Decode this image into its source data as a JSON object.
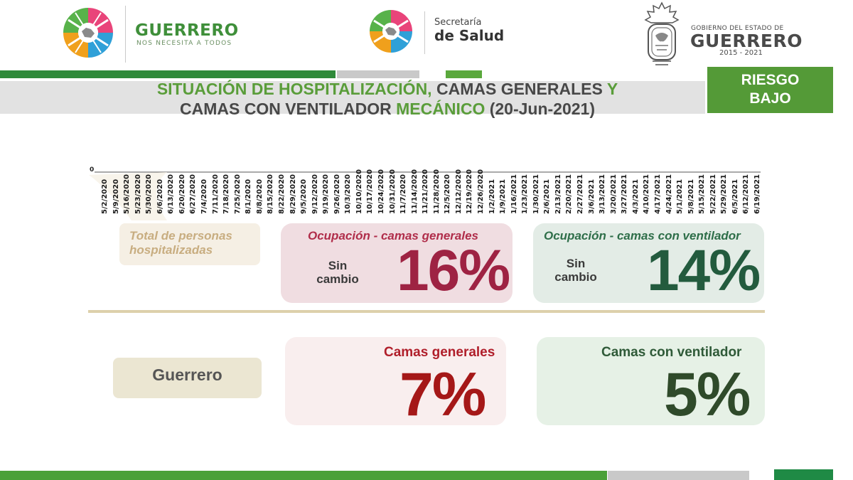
{
  "header": {
    "guerrero_logo": {
      "name": "GUERRERO",
      "tagline": "NOS NECESITA A TODOS"
    },
    "salud_logo": {
      "line1": "Secretaría",
      "line2": "de Salud"
    },
    "government_logo": {
      "line1": "GOBIERNO DEL ESTADO DE",
      "line2": "GUERRERO",
      "years": "2015 - 2021"
    }
  },
  "title": {
    "part1": "SITUACIÓN DE HOSPITALIZACIÓN,",
    "part2": "CAMAS GENERALES",
    "part3": "Y",
    "part4": "CAMAS CON VENTILADOR",
    "part5": "MECÁNICO",
    "part6": "(20-Jun-2021)"
  },
  "risk": {
    "line1": "RIESGO",
    "line2": "BAJO"
  },
  "axis": {
    "zero_label": "0",
    "dates": [
      "5/2/2020",
      "5/9/2020",
      "5/16/2020",
      "5/23/2020",
      "5/30/2020",
      "6/6/2020",
      "6/13/2020",
      "6/20/2020",
      "6/27/2020",
      "7/4/2020",
      "7/11/2020",
      "7/18/2020",
      "7/25/2020",
      "8/1/2020",
      "8/8/2020",
      "8/15/2020",
      "8/22/2020",
      "8/29/2020",
      "9/5/2020",
      "9/12/2020",
      "9/19/2020",
      "9/26/2020",
      "10/3/2020",
      "10/10/2020",
      "10/17/2020",
      "10/24/2020",
      "10/31/2020",
      "11/7/2020",
      "11/14/2020",
      "11/21/2020",
      "11/28/2020",
      "12/5/2020",
      "12/12/2020",
      "12/19/2020",
      "12/26/2020",
      "1/2/2021",
      "1/9/2021",
      "1/16/2021",
      "1/23/2021",
      "1/30/2021",
      "2/6/2021",
      "2/13/2021",
      "2/20/2021",
      "2/27/2021",
      "3/6/2021",
      "3/13/2021",
      "3/20/2021",
      "3/27/2021",
      "4/3/2021",
      "4/10/2021",
      "4/17/2021",
      "4/24/2021",
      "5/1/2021",
      "5/8/2021",
      "5/15/2021",
      "5/22/2021",
      "5/29/2021",
      "6/5/2021",
      "6/12/2021",
      "6/19/2021"
    ]
  },
  "indicators": {
    "total_hospitalized": {
      "label": "Total de personas hospitalizadas"
    },
    "occupancy_general": {
      "title": "Ocupación - camas generales",
      "change_line1": "Sin",
      "change_line2": "cambio",
      "value": "16%"
    },
    "occupancy_ventilator": {
      "title": "Ocupación - camas con ventilador",
      "change_line1": "Sin",
      "change_line2": "cambio",
      "value": "14%"
    }
  },
  "state": {
    "name": "Guerrero",
    "general_beds": {
      "title": "Camas generales",
      "value": "7%"
    },
    "ventilator_beds": {
      "title": "Camas con ventilador",
      "value": "5%"
    }
  },
  "colors": {
    "accent_green": "#549a37",
    "title_green": "#5a9d3a",
    "general_red": "#9e2343",
    "ventilator_green": "#235b3e"
  }
}
